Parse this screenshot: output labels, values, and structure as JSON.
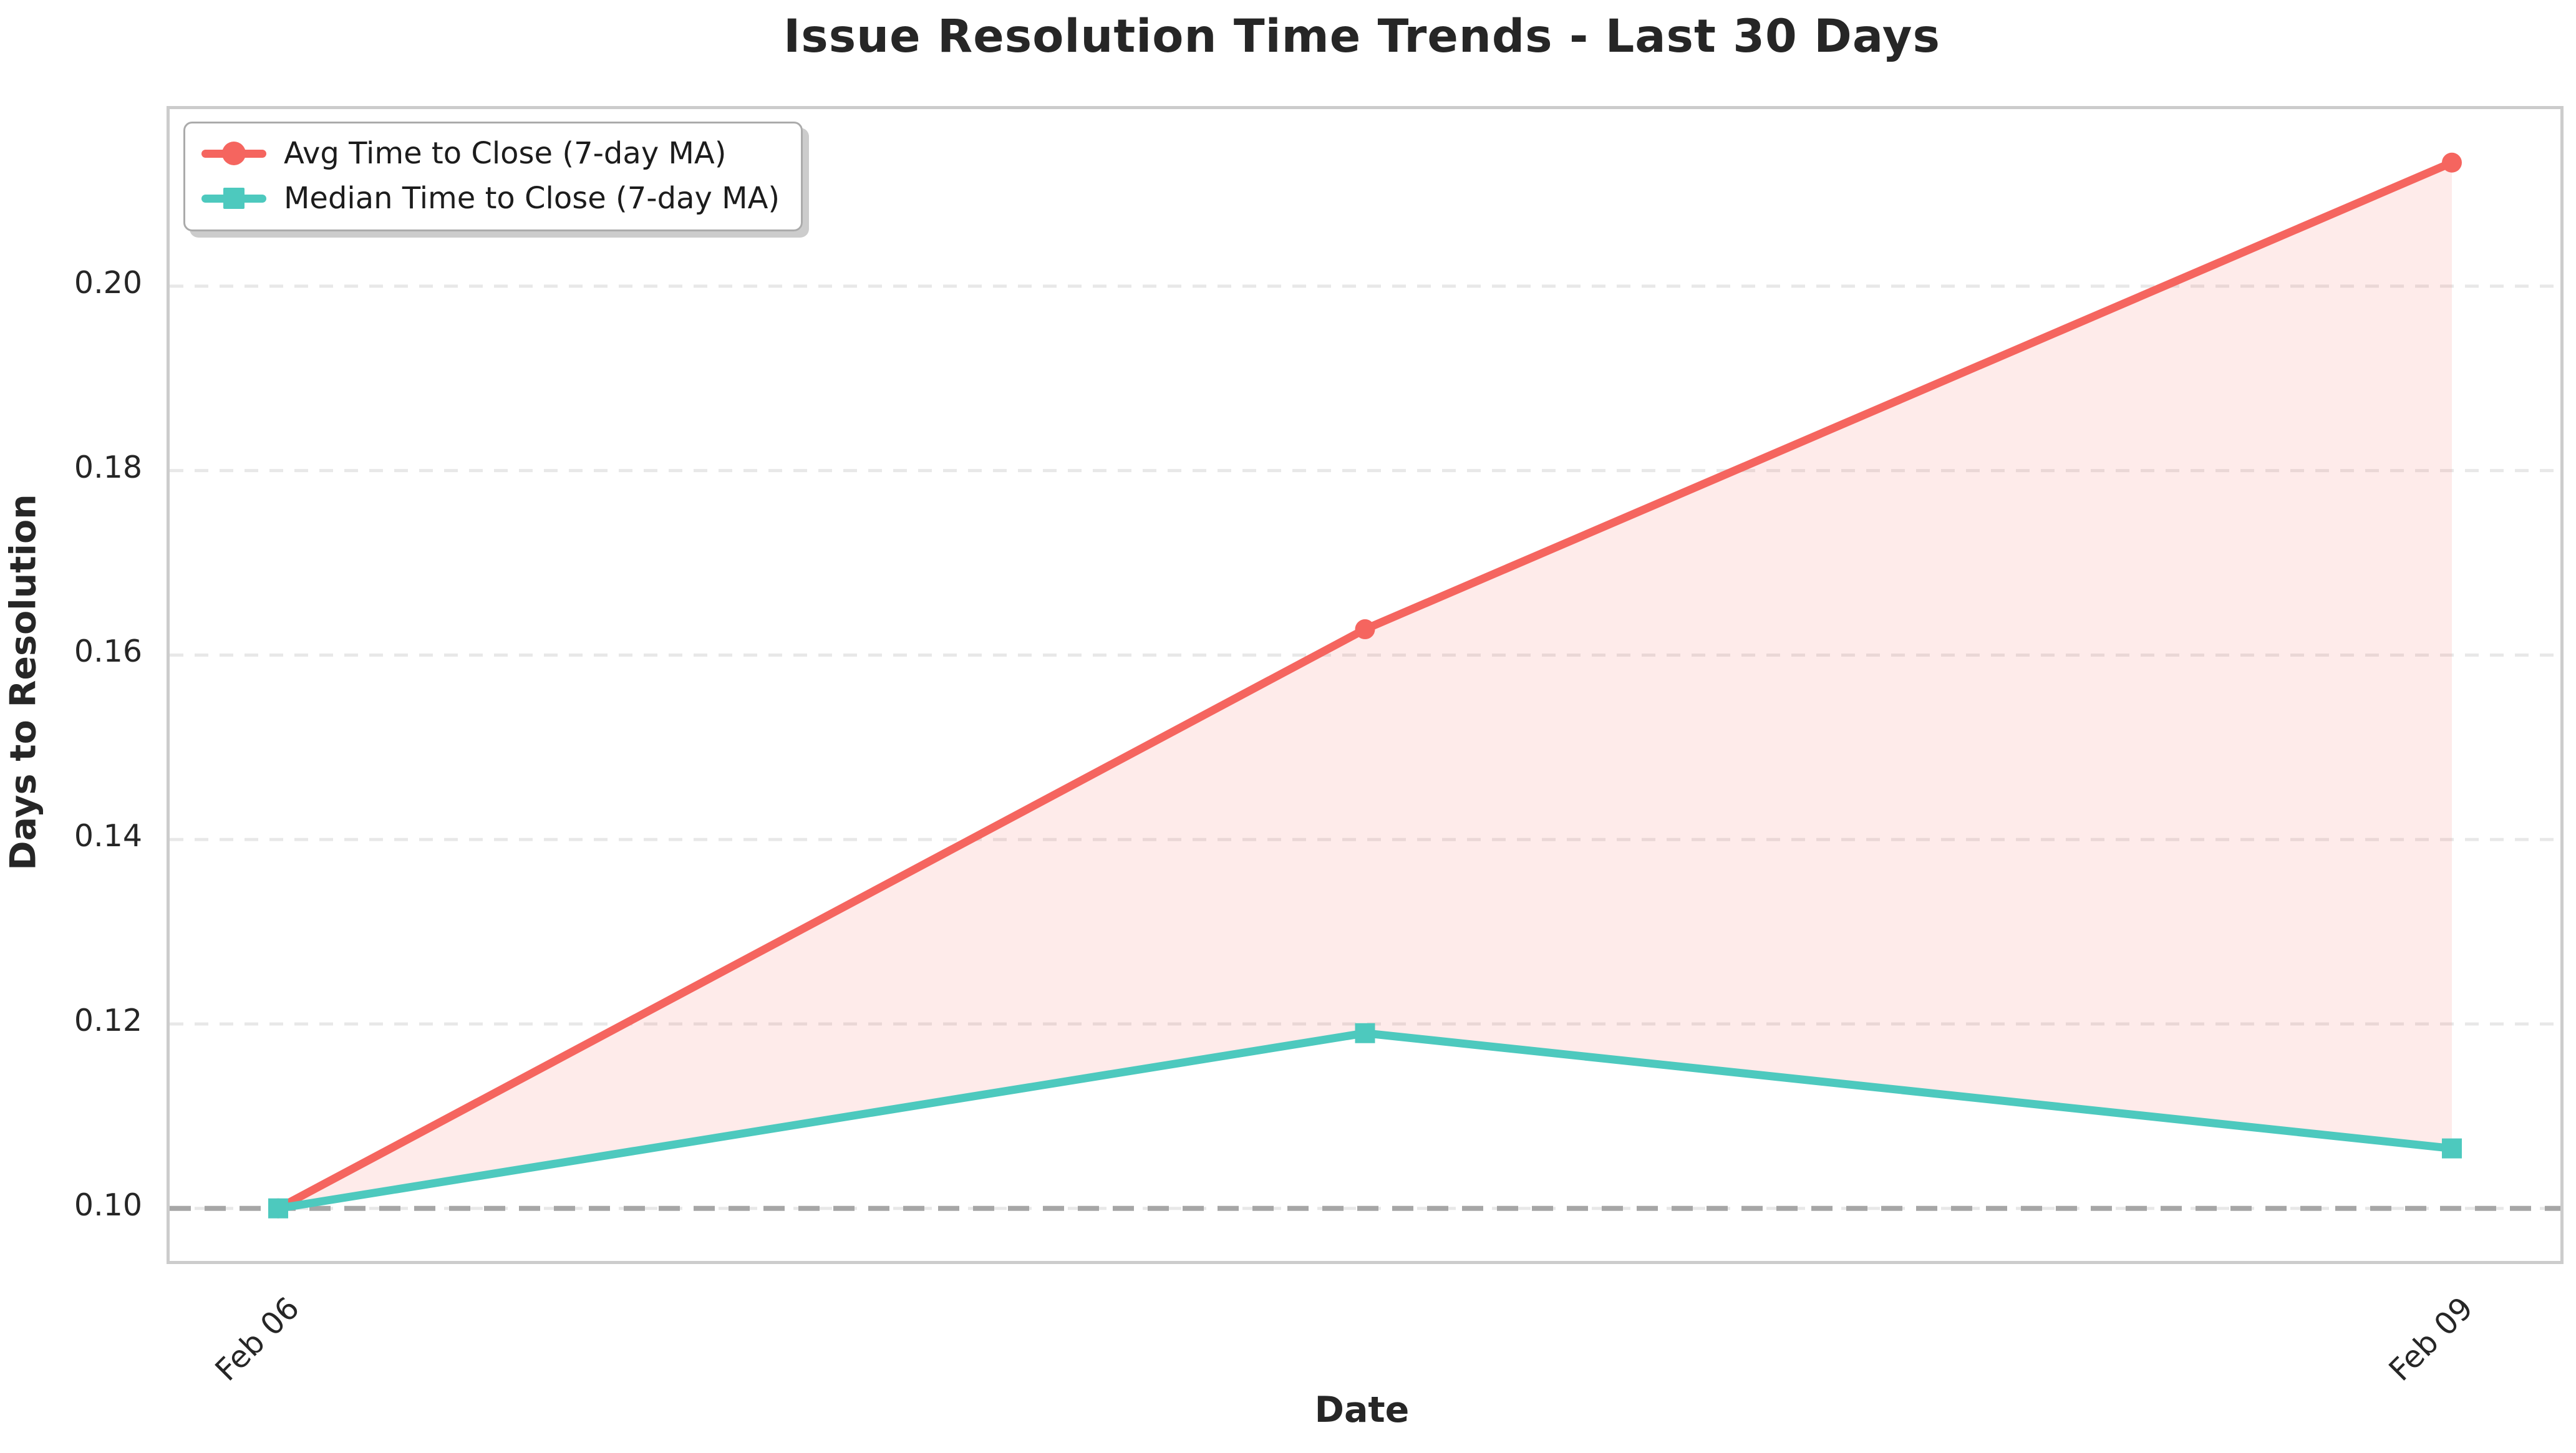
{
  "chart_data": {
    "type": "line",
    "title": "Issue Resolution Time Trends - Last 30 Days",
    "xlabel": "Date",
    "ylabel": "Days to Resolution",
    "grid": true,
    "legend_position": "upper left",
    "num_points": 3,
    "x_margin_frac": 0.0454,
    "ylim": [
      0.0943,
      0.2192
    ],
    "yticks": [
      {
        "value": 0.1,
        "label": "0.10"
      },
      {
        "value": 0.12,
        "label": "0.12"
      },
      {
        "value": 0.14,
        "label": "0.14"
      },
      {
        "value": 0.16,
        "label": "0.16"
      },
      {
        "value": 0.18,
        "label": "0.18"
      },
      {
        "value": 0.2,
        "label": "0.20"
      }
    ],
    "x_tick_labels": [
      {
        "index": 0,
        "label": "Feb 06"
      },
      {
        "index": 2,
        "label": "Feb 09"
      }
    ],
    "series": [
      {
        "name": "Avg Time to Close (7-day MA)",
        "color": "#F5655F",
        "marker": "circle",
        "values": [
          0.1,
          0.1628,
          0.2134
        ]
      },
      {
        "name": "Median Time to Close (7-day MA)",
        "color": "#4DC9BE",
        "marker": "square",
        "values": [
          0.1,
          0.119,
          0.1065
        ]
      }
    ],
    "baseline": {
      "value": 0.1,
      "color": "#a6a6a6",
      "linestyle": "dashed"
    },
    "fill_between_color": "rgba(245,101,95,0.13)",
    "grid_color": "#e8e8e8",
    "spine_color": "#cccccc",
    "text_color": "#262626"
  }
}
